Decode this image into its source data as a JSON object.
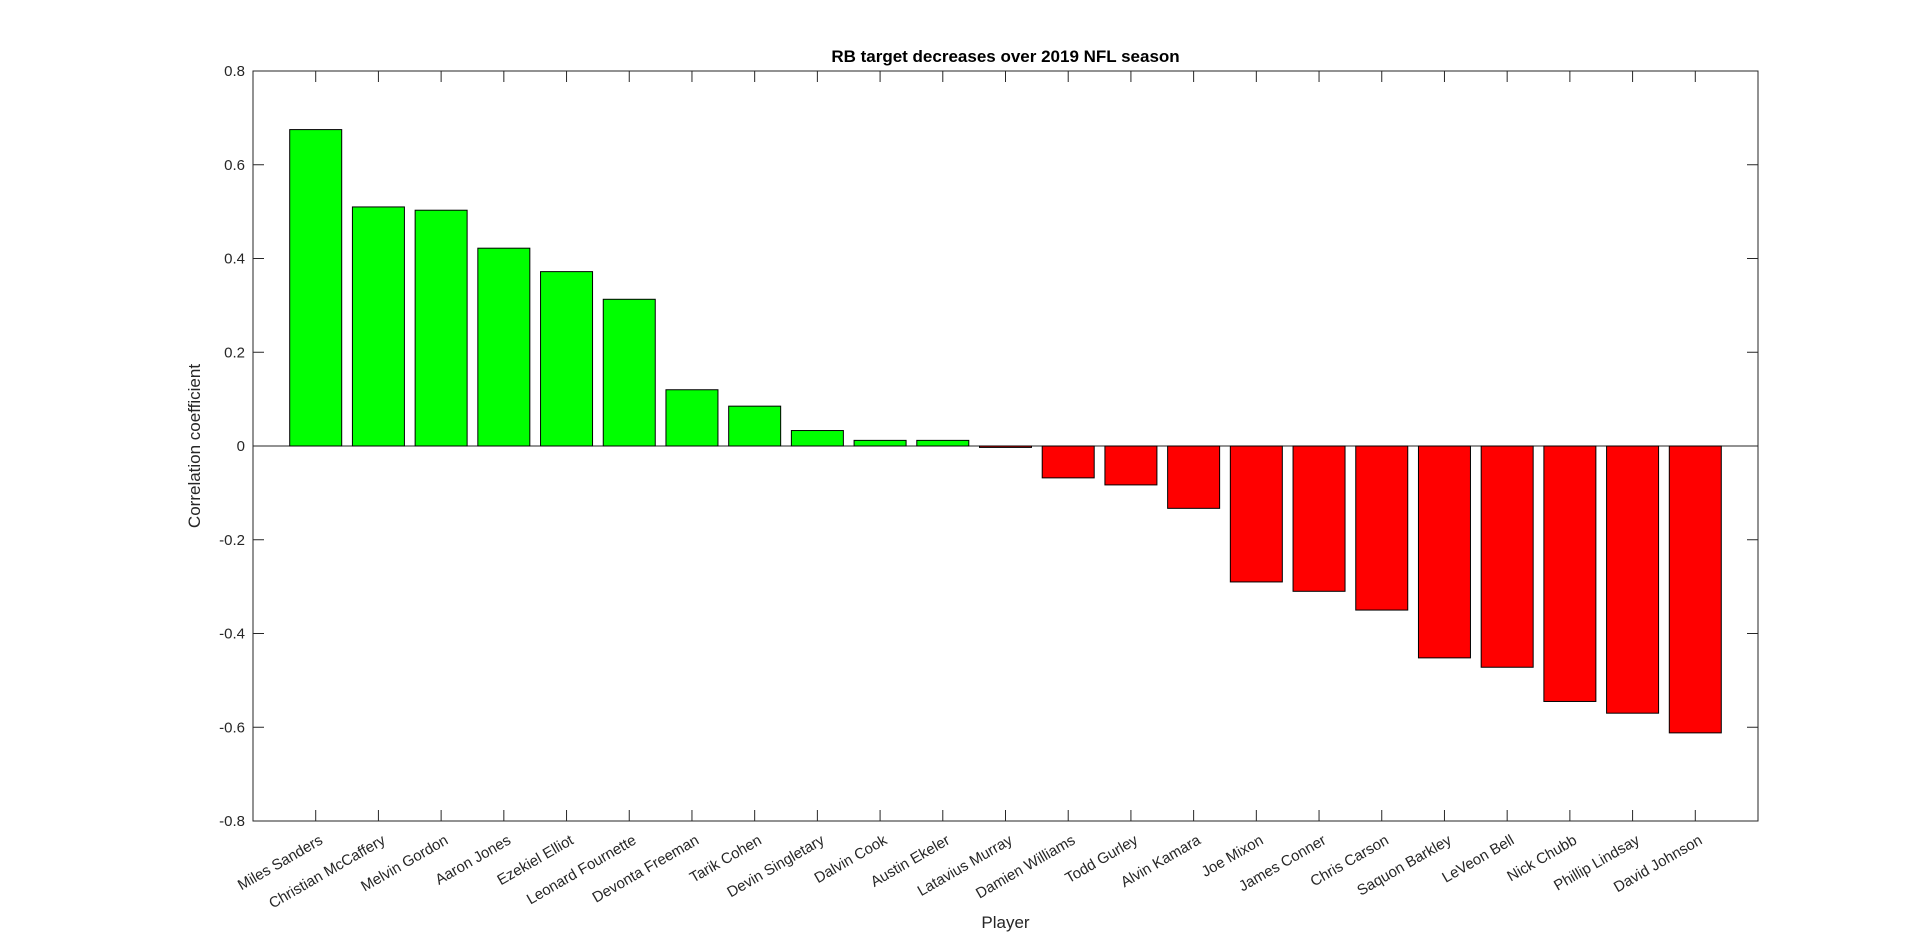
{
  "chart_data": {
    "type": "bar",
    "title": "RB target decreases over 2019 NFL season",
    "xlabel": "Player",
    "ylabel": "Correlation coefficient",
    "ylim": [
      -0.8,
      0.8
    ],
    "yticks": [
      0.8,
      0.6,
      0.4,
      0.2,
      0,
      -0.2,
      -0.4,
      -0.6,
      -0.8
    ],
    "ytick_labels": [
      "0.8",
      "0.6",
      "0.4",
      "0.2",
      "0",
      "-0.2",
      "-0.4",
      "-0.6",
      "-0.8"
    ],
    "grid": false,
    "categories": [
      "Miles Sanders",
      "Christian McCaffery",
      "Melvin Gordon",
      "Aaron Jones",
      "Ezekiel Elliot",
      "Leonard Fournette",
      "Devonta Freeman",
      "Tarik Cohen",
      "Devin Singletary",
      "Dalvin Cook",
      "Austin Ekeler",
      "Latavius Murray",
      "Damien Williams",
      "Todd Gurley",
      "Alvin Kamara",
      "Joe Mixon",
      "James Conner",
      "Chris Carson",
      "Saquon Barkley",
      "LeVeon Bell",
      "Nick Chubb",
      "Phillip Lindsay",
      "David Johnson"
    ],
    "values": [
      0.675,
      0.51,
      0.503,
      0.422,
      0.372,
      0.313,
      0.12,
      0.085,
      0.033,
      0.012,
      0.012,
      -0.003,
      -0.068,
      -0.083,
      -0.133,
      -0.29,
      -0.31,
      -0.35,
      -0.452,
      -0.472,
      -0.545,
      -0.57,
      -0.612
    ],
    "colors": {
      "positive": "#00ff00",
      "negative": "#ff0000",
      "edge": "#000000",
      "axis": "#262626"
    }
  }
}
